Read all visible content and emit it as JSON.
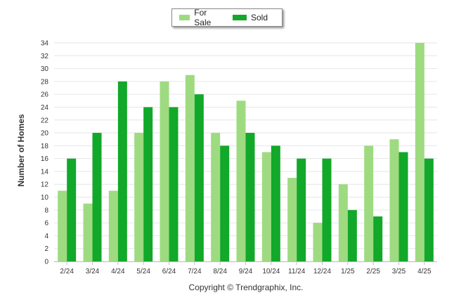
{
  "chart_data": {
    "type": "bar",
    "categories": [
      "2/24",
      "3/24",
      "4/24",
      "5/24",
      "6/24",
      "7/24",
      "8/24",
      "9/24",
      "10/24",
      "11/24",
      "12/24",
      "1/25",
      "2/25",
      "3/25",
      "4/25"
    ],
    "series": [
      {
        "name": "For Sale",
        "color": "#9edb80",
        "values": [
          11,
          9,
          11,
          20,
          28,
          29,
          20,
          25,
          17,
          13,
          6,
          12,
          18,
          19,
          34
        ]
      },
      {
        "name": "Sold",
        "color": "#12a82a",
        "values": [
          16,
          20,
          28,
          24,
          24,
          26,
          18,
          20,
          18,
          16,
          16,
          8,
          7,
          17,
          16
        ]
      }
    ],
    "ylabel": "Number of Homes",
    "xlabel": "",
    "ylim": [
      0,
      34
    ],
    "yticks": [
      0,
      2,
      4,
      6,
      8,
      10,
      12,
      14,
      16,
      18,
      20,
      22,
      24,
      26,
      28,
      30,
      32,
      34
    ],
    "grid": true,
    "legend_position": "top-center"
  },
  "footer": {
    "copyright": "Copyright © Trendgraphix, Inc."
  }
}
